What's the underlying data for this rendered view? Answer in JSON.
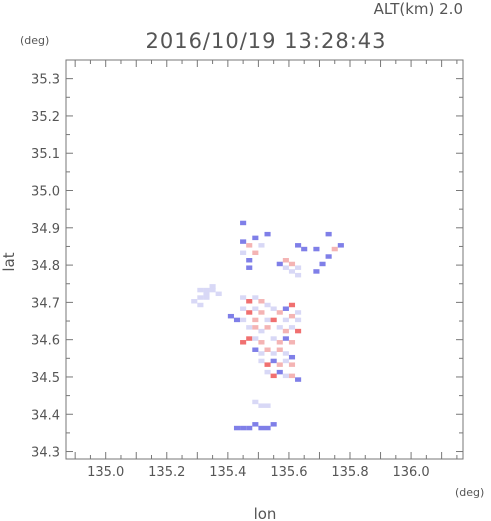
{
  "chart_data": {
    "type": "heatmap",
    "title": "2016/10/19 13:28:43",
    "altitude_label": "ALT(km) 2.0",
    "xlabel": "lon",
    "ylabel": "lat",
    "x_unit": "(deg)",
    "y_unit": "(deg)",
    "xlim": [
      134.87,
      136.17
    ],
    "ylim": [
      34.28,
      35.35
    ],
    "x_ticks": [
      135.0,
      135.2,
      135.4,
      135.6,
      135.8,
      136.0
    ],
    "x_tick_labels": [
      "135.0",
      "135.2",
      "135.4",
      "135.6",
      "135.8",
      "136.0"
    ],
    "y_ticks": [
      34.3,
      34.4,
      34.5,
      34.6,
      34.7,
      34.8,
      34.9,
      35.0,
      35.1,
      35.2,
      35.3
    ],
    "y_tick_labels": [
      "34.3",
      "34.4",
      "34.5",
      "34.6",
      "34.7",
      "34.8",
      "34.9",
      "35.0",
      "35.1",
      "35.2",
      "35.3"
    ],
    "grid": false,
    "colors": {
      "positive": "#f07070",
      "negative": "#7f7fe8",
      "light": "#d8d8f6",
      "axis": "#777777"
    },
    "cells": [
      {
        "lon": 135.31,
        "lat": 34.733,
        "v": -0.35
      },
      {
        "lon": 135.33,
        "lat": 34.733,
        "v": -0.35
      },
      {
        "lon": 135.35,
        "lat": 34.733,
        "v": -0.3
      },
      {
        "lon": 135.37,
        "lat": 34.723,
        "v": -0.45
      },
      {
        "lon": 135.35,
        "lat": 34.743,
        "v": -0.3
      },
      {
        "lon": 135.33,
        "lat": 34.723,
        "v": -0.35
      },
      {
        "lon": 135.31,
        "lat": 34.713,
        "v": -0.3
      },
      {
        "lon": 135.33,
        "lat": 34.713,
        "v": -0.3
      },
      {
        "lon": 135.29,
        "lat": 34.703,
        "v": -0.3
      },
      {
        "lon": 135.31,
        "lat": 34.693,
        "v": -0.35
      },
      {
        "lon": 135.45,
        "lat": 34.863,
        "v": -0.6
      },
      {
        "lon": 135.47,
        "lat": 34.853,
        "v": 0.5
      },
      {
        "lon": 135.49,
        "lat": 34.873,
        "v": -0.7
      },
      {
        "lon": 135.45,
        "lat": 34.833,
        "v": -0.5
      },
      {
        "lon": 135.47,
        "lat": 34.813,
        "v": -0.8
      },
      {
        "lon": 135.49,
        "lat": 34.833,
        "v": 0.4
      },
      {
        "lon": 135.51,
        "lat": 34.853,
        "v": -0.35
      },
      {
        "lon": 135.47,
        "lat": 34.793,
        "v": -0.6
      },
      {
        "lon": 135.45,
        "lat": 34.913,
        "v": -0.7
      },
      {
        "lon": 135.53,
        "lat": 34.883,
        "v": -0.6
      },
      {
        "lon": 135.57,
        "lat": 34.803,
        "v": -0.7
      },
      {
        "lon": 135.59,
        "lat": 34.793,
        "v": -0.5
      },
      {
        "lon": 135.61,
        "lat": 34.803,
        "v": 0.5
      },
      {
        "lon": 135.63,
        "lat": 34.793,
        "v": -0.3
      },
      {
        "lon": 135.61,
        "lat": 34.783,
        "v": -0.35
      },
      {
        "lon": 135.63,
        "lat": 34.773,
        "v": -0.3
      },
      {
        "lon": 135.59,
        "lat": 34.813,
        "v": 0.4
      },
      {
        "lon": 135.63,
        "lat": 34.853,
        "v": -0.7
      },
      {
        "lon": 135.65,
        "lat": 34.843,
        "v": -0.6
      },
      {
        "lon": 135.69,
        "lat": 34.843,
        "v": -0.6
      },
      {
        "lon": 135.71,
        "lat": 34.803,
        "v": -0.7
      },
      {
        "lon": 135.73,
        "lat": 34.823,
        "v": -0.6
      },
      {
        "lon": 135.75,
        "lat": 34.843,
        "v": 0.5
      },
      {
        "lon": 135.77,
        "lat": 34.853,
        "v": -0.7
      },
      {
        "lon": 135.73,
        "lat": 34.883,
        "v": -0.8
      },
      {
        "lon": 135.69,
        "lat": 34.783,
        "v": -0.6
      },
      {
        "lon": 135.45,
        "lat": 34.713,
        "v": -0.3
      },
      {
        "lon": 135.47,
        "lat": 34.703,
        "v": 0.6
      },
      {
        "lon": 135.49,
        "lat": 34.713,
        "v": -0.4
      },
      {
        "lon": 135.51,
        "lat": 34.703,
        "v": 0.3
      },
      {
        "lon": 135.53,
        "lat": 34.693,
        "v": -0.3
      },
      {
        "lon": 135.45,
        "lat": 34.683,
        "v": -0.35
      },
      {
        "lon": 135.47,
        "lat": 34.673,
        "v": 0.7
      },
      {
        "lon": 135.49,
        "lat": 34.683,
        "v": -0.3
      },
      {
        "lon": 135.51,
        "lat": 34.673,
        "v": 0.3
      },
      {
        "lon": 135.55,
        "lat": 34.683,
        "v": -0.4
      },
      {
        "lon": 135.57,
        "lat": 34.673,
        "v": 0.4
      },
      {
        "lon": 135.59,
        "lat": 34.683,
        "v": -0.6
      },
      {
        "lon": 135.61,
        "lat": 34.693,
        "v": 0.7
      },
      {
        "lon": 135.63,
        "lat": 34.673,
        "v": -0.3
      },
      {
        "lon": 135.43,
        "lat": 34.653,
        "v": -0.6
      },
      {
        "lon": 135.41,
        "lat": 34.663,
        "v": -0.8
      },
      {
        "lon": 135.45,
        "lat": 34.653,
        "v": -0.3
      },
      {
        "lon": 135.49,
        "lat": 34.653,
        "v": 0.3
      },
      {
        "lon": 135.53,
        "lat": 34.653,
        "v": -0.3
      },
      {
        "lon": 135.55,
        "lat": 34.653,
        "v": 0.8
      },
      {
        "lon": 135.59,
        "lat": 34.653,
        "v": -0.3
      },
      {
        "lon": 135.61,
        "lat": 34.663,
        "v": 0.4
      },
      {
        "lon": 135.63,
        "lat": 34.653,
        "v": -0.4
      },
      {
        "lon": 135.47,
        "lat": 34.633,
        "v": -0.3
      },
      {
        "lon": 135.49,
        "lat": 34.633,
        "v": 0.4
      },
      {
        "lon": 135.51,
        "lat": 34.623,
        "v": -0.3
      },
      {
        "lon": 135.53,
        "lat": 34.633,
        "v": 0.3
      },
      {
        "lon": 135.57,
        "lat": 34.633,
        "v": -0.5
      },
      {
        "lon": 135.59,
        "lat": 34.623,
        "v": 0.3
      },
      {
        "lon": 135.61,
        "lat": 34.633,
        "v": -0.3
      },
      {
        "lon": 135.63,
        "lat": 34.623,
        "v": 0.8
      },
      {
        "lon": 135.47,
        "lat": 34.603,
        "v": 0.9
      },
      {
        "lon": 135.45,
        "lat": 34.593,
        "v": 0.6
      },
      {
        "lon": 135.49,
        "lat": 34.603,
        "v": -0.3
      },
      {
        "lon": 135.51,
        "lat": 34.593,
        "v": 0.4
      },
      {
        "lon": 135.55,
        "lat": 34.603,
        "v": -0.3
      },
      {
        "lon": 135.57,
        "lat": 34.593,
        "v": 0.4
      },
      {
        "lon": 135.59,
        "lat": 34.603,
        "v": -0.6
      },
      {
        "lon": 135.61,
        "lat": 34.593,
        "v": 0.3
      },
      {
        "lon": 135.49,
        "lat": 34.573,
        "v": -0.6
      },
      {
        "lon": 135.51,
        "lat": 34.563,
        "v": -0.3
      },
      {
        "lon": 135.53,
        "lat": 34.573,
        "v": 0.4
      },
      {
        "lon": 135.55,
        "lat": 34.563,
        "v": -0.3
      },
      {
        "lon": 135.57,
        "lat": 34.573,
        "v": 0.4
      },
      {
        "lon": 135.59,
        "lat": 34.563,
        "v": -0.3
      },
      {
        "lon": 135.61,
        "lat": 34.553,
        "v": -0.6
      },
      {
        "lon": 135.51,
        "lat": 34.543,
        "v": -0.3
      },
      {
        "lon": 135.53,
        "lat": 34.533,
        "v": 0.7
      },
      {
        "lon": 135.55,
        "lat": 34.543,
        "v": -0.6
      },
      {
        "lon": 135.57,
        "lat": 34.533,
        "v": 0.3
      },
      {
        "lon": 135.59,
        "lat": 34.543,
        "v": -0.3
      },
      {
        "lon": 135.61,
        "lat": 34.533,
        "v": 0.3
      },
      {
        "lon": 135.53,
        "lat": 34.513,
        "v": -0.3
      },
      {
        "lon": 135.55,
        "lat": 34.503,
        "v": 0.7
      },
      {
        "lon": 135.57,
        "lat": 34.513,
        "v": -0.8
      },
      {
        "lon": 135.59,
        "lat": 34.503,
        "v": -0.3
      },
      {
        "lon": 135.61,
        "lat": 34.503,
        "v": 0.3
      },
      {
        "lon": 135.63,
        "lat": 34.493,
        "v": -0.7
      },
      {
        "lon": 135.49,
        "lat": 34.433,
        "v": -0.3
      },
      {
        "lon": 135.51,
        "lat": 34.423,
        "v": -0.3
      },
      {
        "lon": 135.53,
        "lat": 34.423,
        "v": -0.3
      },
      {
        "lon": 135.43,
        "lat": 34.363,
        "v": -0.8
      },
      {
        "lon": 135.45,
        "lat": 34.363,
        "v": -0.6
      },
      {
        "lon": 135.47,
        "lat": 34.363,
        "v": -0.8
      },
      {
        "lon": 135.49,
        "lat": 34.373,
        "v": -0.6
      },
      {
        "lon": 135.51,
        "lat": 34.363,
        "v": -0.8
      },
      {
        "lon": 135.53,
        "lat": 34.363,
        "v": -0.7
      },
      {
        "lon": 135.55,
        "lat": 34.373,
        "v": -0.6
      }
    ]
  }
}
